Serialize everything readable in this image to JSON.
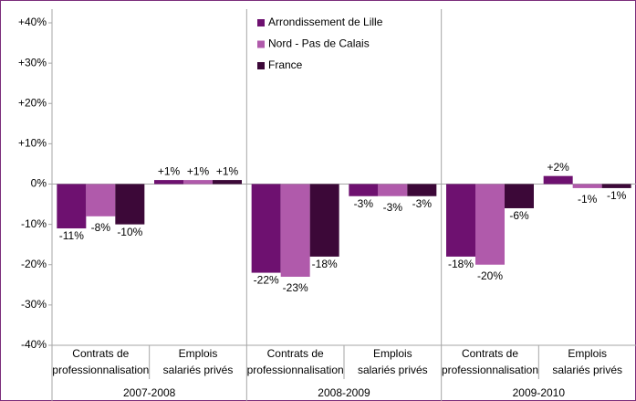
{
  "chart_data": {
    "type": "bar",
    "groups": [
      "2007-2008",
      "2008-2009",
      "2009-2010"
    ],
    "categories": [
      [
        "Contrats de",
        "professionnalisation"
      ],
      [
        "Emplois",
        "salariés privés"
      ],
      [
        "Contrats de",
        "professionnalisation"
      ],
      [
        "Emplois",
        "salariés privés"
      ],
      [
        "Contrats de",
        "professionnalisation"
      ],
      [
        "Emplois",
        "salariés privés"
      ]
    ],
    "series": [
      {
        "name": "Arrondissement de Lille",
        "color": "#6e1170",
        "values": [
          -11,
          1,
          -22,
          -3,
          -18,
          2
        ],
        "value_labels": [
          "-11%",
          "+1%",
          "-22%",
          "-3%",
          "-18%",
          "+2%"
        ]
      },
      {
        "name": "Nord - Pas de Calais",
        "color": "#b05aab",
        "values": [
          -8,
          1,
          -23,
          -3,
          -20,
          -1
        ],
        "value_labels": [
          "-8%",
          "+1%",
          "-23%",
          "-3%",
          "-20%",
          "-1%"
        ]
      },
      {
        "name": "France",
        "color": "#3c0838",
        "values": [
          -10,
          1,
          -18,
          -3,
          -6,
          -1
        ],
        "value_labels": [
          "-10%",
          "+1%",
          "-18%",
          "-3%",
          "-6%",
          "-1%"
        ]
      }
    ],
    "ylim": [
      -40,
      40
    ],
    "yticks": [
      {
        "value": 40,
        "label": "+40%"
      },
      {
        "value": 30,
        "label": "+30%"
      },
      {
        "value": 20,
        "label": "+20%"
      },
      {
        "value": 10,
        "label": "+10%"
      },
      {
        "value": 0,
        "label": "0%"
      },
      {
        "value": -10,
        "label": "-10%"
      },
      {
        "value": -20,
        "label": "-20%"
      },
      {
        "value": -30,
        "label": "-30%"
      },
      {
        "value": -40,
        "label": "-40%"
      }
    ],
    "legend": "top"
  }
}
